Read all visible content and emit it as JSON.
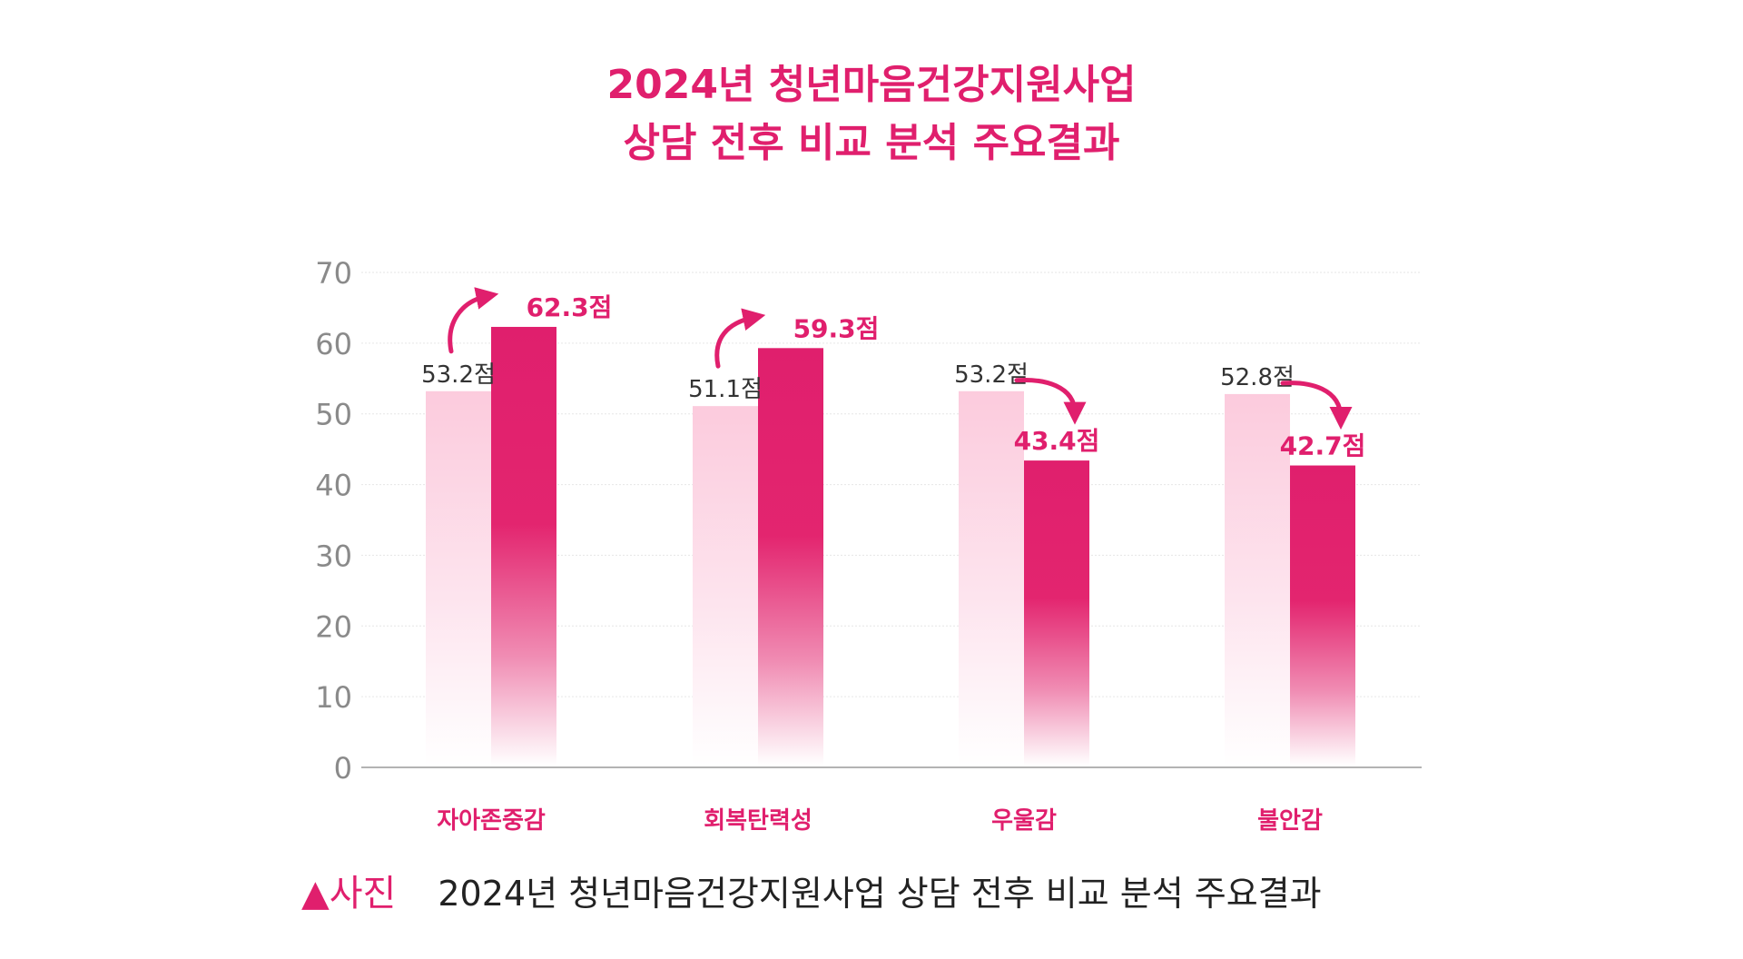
{
  "title": {
    "line1": "2024년 청년마음건강지원사업",
    "line2": "상담 전후 비교 분석 주요결과"
  },
  "caption": {
    "tag": "▲사진",
    "text": "2024년 청년마음건강지원사업 상담 전후 비교 분석 주요결과"
  },
  "colors": {
    "accent": "#e01f6d",
    "before_bar": "#fccbdd",
    "after_bar": "#e01f6d",
    "axis_text": "#8a8a8a",
    "grid": "#e6e6e6"
  },
  "chart_data": {
    "type": "bar",
    "categories": [
      "자아존중감",
      "회복탄력성",
      "우울감",
      "불안감"
    ],
    "series": [
      {
        "values": [
          53.2,
          51.1,
          53.2,
          52.8
        ]
      },
      {
        "values": [
          62.3,
          59.3,
          43.4,
          42.7
        ]
      }
    ],
    "value_labels": {
      "before": [
        "53.2점",
        "51.1점",
        "53.2점",
        "52.8점"
      ],
      "after": [
        "62.3점",
        "59.3점",
        "43.4점",
        "42.7점"
      ]
    },
    "ylim": [
      0,
      70
    ],
    "yticks": [
      "0",
      "10",
      "20",
      "30",
      "40",
      "50",
      "60",
      "70"
    ],
    "grid": true,
    "legend": "none",
    "annotations": [
      "up-arrow",
      "up-arrow",
      "down-arrow",
      "down-arrow"
    ]
  }
}
